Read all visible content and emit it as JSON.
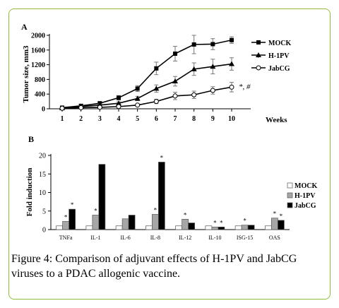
{
  "chart_data": [
    {
      "panel": "A",
      "type": "line",
      "xlabel": "Weeks",
      "ylabel": "Tumor size, mm3",
      "x": [
        1,
        2,
        3,
        4,
        5,
        6,
        7,
        8,
        9,
        10
      ],
      "xticks": [
        "1",
        "2",
        "3",
        "4",
        "5",
        "6",
        "7",
        "8",
        "9",
        "10"
      ],
      "ylim": [
        0,
        2000
      ],
      "yticks": [
        "0",
        "400",
        "800",
        "1200",
        "1600",
        "2000"
      ],
      "legend_position": "right",
      "series": [
        {
          "name": "MOCK",
          "marker": "square",
          "values": [
            30,
            80,
            150,
            300,
            550,
            1100,
            1500,
            1750,
            1760,
            1870
          ],
          "errors": [
            15,
            30,
            40,
            60,
            80,
            170,
            200,
            250,
            150,
            90
          ]
        },
        {
          "name": "H-1PV",
          "marker": "triangle",
          "values": [
            20,
            60,
            100,
            150,
            280,
            550,
            750,
            1080,
            1150,
            1220
          ],
          "errors": [
            10,
            20,
            30,
            40,
            60,
            100,
            130,
            170,
            200,
            170
          ]
        },
        {
          "name": "JabCG",
          "marker": "circle",
          "values": [
            15,
            30,
            40,
            60,
            100,
            200,
            350,
            380,
            500,
            590
          ],
          "errors": [
            5,
            10,
            15,
            20,
            30,
            60,
            100,
            100,
            100,
            130
          ]
        }
      ],
      "annotations": [
        "*",
        "*, #"
      ]
    },
    {
      "panel": "B",
      "type": "bar",
      "ylabel": "Fold induction",
      "categories": [
        "TNFa",
        "IL-1",
        "IL-6",
        "IL-8",
        "IL-12",
        "IL-10",
        "ISG-15",
        "OAS"
      ],
      "ylim": [
        0,
        20
      ],
      "yticks": [
        "0",
        "5",
        "10",
        "15",
        "20"
      ],
      "legend_position": "right",
      "series": [
        {
          "name": "MOCK",
          "color": "#ffffff",
          "values": [
            1,
            1,
            1,
            1,
            1,
            1,
            1,
            1
          ]
        },
        {
          "name": "H-1PV",
          "color": "#a6a6a6",
          "values": [
            2.2,
            3.9,
            2.9,
            4.1,
            2.8,
            0.7,
            1.2,
            3.1
          ]
        },
        {
          "name": "JabCG",
          "color": "#000000",
          "values": [
            5.5,
            17.6,
            3.9,
            18.2,
            1.8,
            0.7,
            1.2,
            2.5
          ]
        }
      ],
      "star_labels": [
        "*",
        "*",
        "*",
        "*",
        "*",
        "*",
        "*",
        "*",
        "*",
        "*",
        "*",
        "*"
      ]
    }
  ],
  "caption": {
    "figure_label": "Figure 4",
    "text": ": Comparison of adjuvant effects of H-1PV and JabCG viruses to a PDAC allogenic vaccine."
  }
}
